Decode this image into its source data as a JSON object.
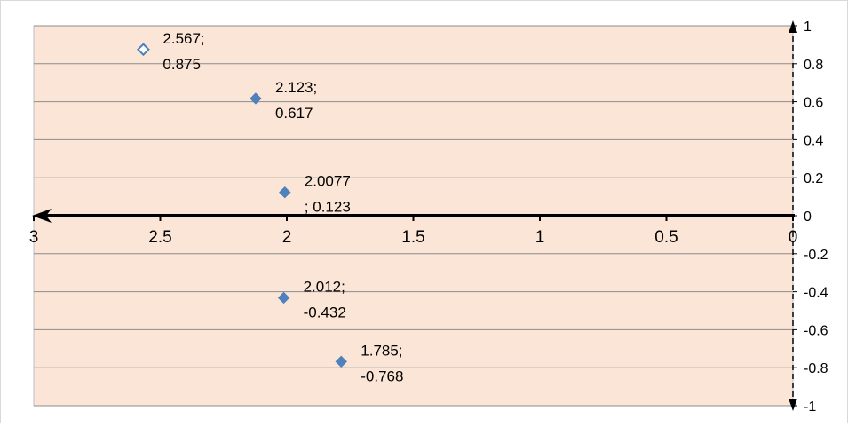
{
  "chart_data": {
    "type": "scatter",
    "title": "",
    "xlabel": "",
    "ylabel": "",
    "x_reversed": true,
    "xlim": [
      0,
      3
    ],
    "ylim": [
      -1,
      1
    ],
    "x_ticks": [
      3,
      2.5,
      2,
      1.5,
      1,
      0.5,
      0
    ],
    "x_tick_labels": [
      "3",
      "2.5",
      "2",
      "1.5",
      "1",
      "0.5",
      "0"
    ],
    "y_ticks": [
      1,
      0.8,
      0.6,
      0.4,
      0.2,
      0,
      -0.2,
      -0.4,
      -0.6,
      -0.8,
      -1
    ],
    "y_tick_labels": [
      "1",
      "0.8",
      "0.6",
      "0.4",
      "0.2",
      "0",
      "-0.2",
      "-0.4",
      "-0.6",
      "-0.8",
      "-1"
    ],
    "grid": true,
    "legend": "none",
    "colors": {
      "plot_background": "#fbe5d6",
      "marker": "#4f81bd",
      "gridline": "#8c8c8c",
      "axis": "#000000",
      "frame": "#d9d9d9"
    },
    "points": [
      {
        "x": 2.567,
        "y": 0.875,
        "label_line1": "2.567;",
        "label_line2": "0.875",
        "hollow": true
      },
      {
        "x": 2.123,
        "y": 0.617,
        "label_line1": "2.123;",
        "label_line2": "0.617",
        "hollow": false
      },
      {
        "x": 2.0077,
        "y": 0.123,
        "label_line1": "2.0077",
        "label_line2": "; 0.123",
        "hollow": false
      },
      {
        "x": 2.012,
        "y": -0.432,
        "label_line1": "2.012;",
        "label_line2": "-0.432",
        "hollow": false
      },
      {
        "x": 1.785,
        "y": -0.768,
        "label_line1": "1.785;",
        "label_line2": "-0.768",
        "hollow": false
      }
    ]
  }
}
